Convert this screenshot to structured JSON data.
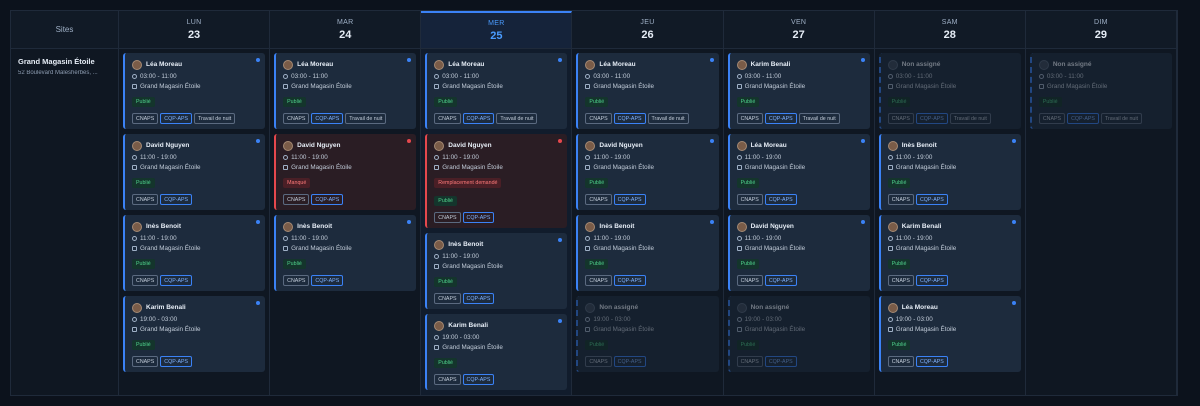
{
  "header": {
    "sites_label": "Sites",
    "days": [
      {
        "name": "LUN",
        "date": 23
      },
      {
        "name": "MAR",
        "date": 24
      },
      {
        "name": "MER",
        "date": 25,
        "highlight": true
      },
      {
        "name": "JEU",
        "date": 26
      },
      {
        "name": "VEN",
        "date": 27
      },
      {
        "name": "SAM",
        "date": 28
      },
      {
        "name": "DIM",
        "date": 29
      }
    ]
  },
  "site": {
    "name": "Grand Magasin Étoile",
    "address": "52 Boulevard Malesherbes, ..."
  },
  "columns": [
    {
      "shifts": [
        {
          "name": "Léa Moreau",
          "time": "03:00 - 11:00",
          "location": "Grand Magasin Étoile",
          "status": "Publié",
          "tags": [
            "CNAPS",
            "CQP-APS",
            "Travail de nuit"
          ],
          "color": "#3b82f6",
          "border": "solid"
        },
        {
          "name": "David Nguyen",
          "time": "11:00 - 19:00",
          "location": "Grand Magasin Étoile",
          "status": "Publié",
          "tags": [
            "CNAPS",
            "CQP-APS"
          ],
          "color": "#3b82f6",
          "border": "solid"
        },
        {
          "name": "Inès Benoit",
          "time": "11:00 - 19:00",
          "location": "Grand Magasin Étoile",
          "status": "Publié",
          "tags": [
            "CNAPS",
            "CQP-APS"
          ],
          "color": "#3b82f6",
          "border": "solid"
        },
        {
          "name": "Karim Benali",
          "time": "19:00 - 03:00",
          "location": "Grand Magasin Étoile",
          "status": "Publié",
          "tags": [
            "CNAPS",
            "CQP-APS"
          ],
          "color": "#3b82f6",
          "border": "solid"
        }
      ]
    },
    {
      "shifts": [
        {
          "name": "Léa Moreau",
          "time": "03:00 - 11:00",
          "location": "Grand Magasin Étoile",
          "status": "Publié",
          "tags": [
            "CNAPS",
            "CQP-APS",
            "Travail de nuit"
          ],
          "color": "#3b82f6",
          "border": "solid"
        },
        {
          "name": "David Nguyen",
          "time": "11:00 - 19:00",
          "location": "Grand Magasin Étoile",
          "alert": "Manqué",
          "tags": [
            "CNAPS",
            "CQP-APS"
          ],
          "color": "#e5484d",
          "border": "solid"
        },
        {
          "name": "Inès Benoit",
          "time": "11:00 - 19:00",
          "location": "Grand Magasin Étoile",
          "status": "Publié",
          "tags": [
            "CNAPS",
            "CQP-APS"
          ],
          "color": "#3b82f6",
          "border": "solid"
        }
      ]
    },
    {
      "shifts": [
        {
          "name": "Léa Moreau",
          "time": "03:00 - 11:00",
          "location": "Grand Magasin Étoile",
          "status": "Publié",
          "tags": [
            "CNAPS",
            "CQP-APS",
            "Travail de nuit"
          ],
          "color": "#3b82f6",
          "border": "solid"
        },
        {
          "name": "David Nguyen",
          "time": "11:00 - 19:00",
          "location": "Grand Magasin Étoile",
          "alert": "Remplacement demandé",
          "status": "Publié",
          "tags": [
            "CNAPS",
            "CQP-APS"
          ],
          "color": "#e5484d",
          "border": "solid"
        },
        {
          "name": "Inès Benoit",
          "time": "11:00 - 19:00",
          "location": "Grand Magasin Étoile",
          "status": "Publié",
          "tags": [
            "CNAPS",
            "CQP-APS"
          ],
          "color": "#3b82f6",
          "border": "solid"
        },
        {
          "name": "Karim Benali",
          "time": "19:00 - 03:00",
          "location": "Grand Magasin Étoile",
          "status": "Publié",
          "tags": [
            "CNAPS",
            "CQP-APS"
          ],
          "color": "#3b82f6",
          "border": "solid"
        }
      ]
    },
    {
      "shifts": [
        {
          "name": "Léa Moreau",
          "time": "03:00 - 11:00",
          "location": "Grand Magasin Étoile",
          "status": "Publié",
          "tags": [
            "CNAPS",
            "CQP-APS",
            "Travail de nuit"
          ],
          "color": "#3b82f6",
          "border": "solid"
        },
        {
          "name": "David Nguyen",
          "time": "11:00 - 19:00",
          "location": "Grand Magasin Étoile",
          "status": "Publié",
          "tags": [
            "CNAPS",
            "CQP-APS"
          ],
          "color": "#3b82f6",
          "border": "solid"
        },
        {
          "name": "Inès Benoit",
          "time": "11:00 - 19:00",
          "location": "Grand Magasin Étoile",
          "status": "Publié",
          "tags": [
            "CNAPS",
            "CQP-APS"
          ],
          "color": "#3b82f6",
          "border": "solid"
        },
        {
          "name": "Non assigné",
          "time": "19:00 - 03:00",
          "location": "Grand Magasin Étoile",
          "status": "Publié",
          "tags": [
            "CNAPS",
            "CQP-APS"
          ],
          "color": "#3b82f6",
          "border": "dashed"
        }
      ]
    },
    {
      "shifts": [
        {
          "name": "Karim Benali",
          "time": "03:00 - 11:00",
          "location": "Grand Magasin Étoile",
          "status": "Publié",
          "tags": [
            "CNAPS",
            "CQP-APS",
            "Travail de nuit"
          ],
          "color": "#3b82f6",
          "border": "solid"
        },
        {
          "name": "Léa Moreau",
          "time": "11:00 - 19:00",
          "location": "Grand Magasin Étoile",
          "status": "Publié",
          "tags": [
            "CNAPS",
            "CQP-APS"
          ],
          "color": "#3b82f6",
          "border": "solid"
        },
        {
          "name": "David Nguyen",
          "time": "11:00 - 19:00",
          "location": "Grand Magasin Étoile",
          "status": "Publié",
          "tags": [
            "CNAPS",
            "CQP-APS"
          ],
          "color": "#3b82f6",
          "border": "solid"
        },
        {
          "name": "Non assigné",
          "time": "19:00 - 03:00",
          "location": "Grand Magasin Étoile",
          "status": "Publié",
          "tags": [
            "CNAPS",
            "CQP-APS"
          ],
          "color": "#3b82f6",
          "border": "dashed"
        }
      ]
    },
    {
      "shifts": [
        {
          "name": "Non assigné",
          "time": "03:00 - 11:00",
          "location": "Grand Magasin Étoile",
          "status": "Publié",
          "tags": [
            "CNAPS",
            "CQP-APS",
            "Travail de nuit"
          ],
          "color": "#3b82f6",
          "border": "dashed"
        },
        {
          "name": "Inès Benoit",
          "time": "11:00 - 19:00",
          "location": "Grand Magasin Étoile",
          "status": "Publié",
          "tags": [
            "CNAPS",
            "CQP-APS"
          ],
          "color": "#3b82f6",
          "border": "solid"
        },
        {
          "name": "Karim Benali",
          "time": "11:00 - 19:00",
          "location": "Grand Magasin Étoile",
          "status": "Publié",
          "tags": [
            "CNAPS",
            "CQP-APS"
          ],
          "color": "#3b82f6",
          "border": "solid"
        },
        {
          "name": "Léa Moreau",
          "time": "19:00 - 03:00",
          "location": "Grand Magasin Étoile",
          "status": "Publié",
          "tags": [
            "CNAPS",
            "CQP-APS"
          ],
          "color": "#3b82f6",
          "border": "solid"
        }
      ]
    },
    {
      "shifts": [
        {
          "name": "Non assigné",
          "time": "03:00 - 11:00",
          "location": "Grand Magasin Étoile",
          "status": "Publié",
          "tags": [
            "CNAPS",
            "CQP-APS",
            "Travail de nuit"
          ],
          "color": "#3b82f6",
          "border": "dashed"
        }
      ]
    }
  ]
}
